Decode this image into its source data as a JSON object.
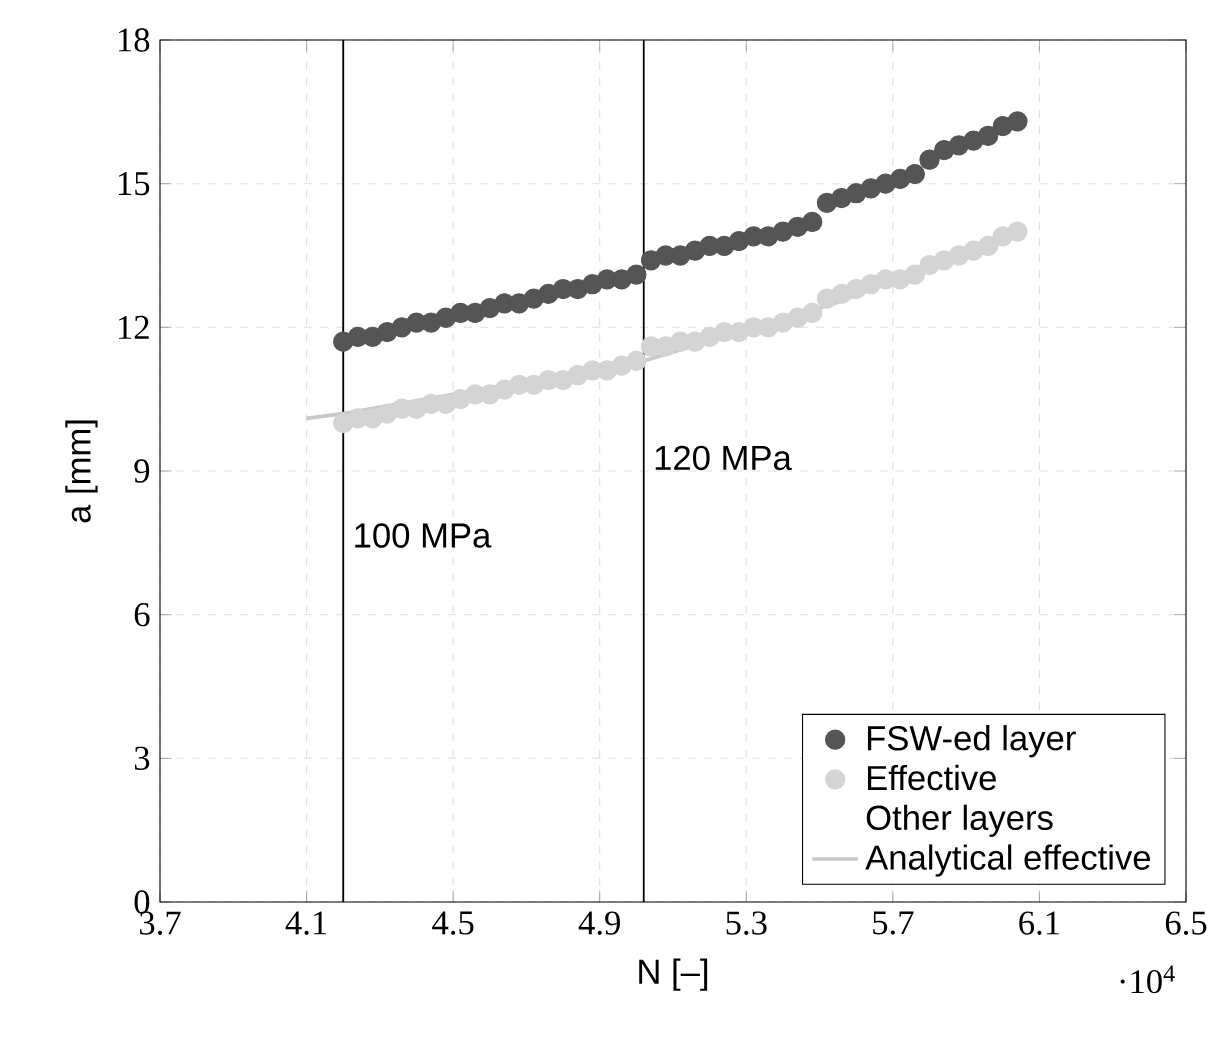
{
  "chart_data": {
    "type": "scatter",
    "xlabel": "N [–]",
    "ylabel": "a [mm]",
    "xlim": [
      3.7,
      6.5
    ],
    "xticks": [
      3.7,
      4.1,
      4.5,
      4.9,
      5.3,
      5.7,
      6.1,
      6.5
    ],
    "ylim": [
      0,
      18
    ],
    "yticks": [
      0,
      3,
      6,
      9,
      12,
      15,
      18
    ],
    "grid": true,
    "legend": "bottom right",
    "x": [
      4.2,
      4.24,
      4.28,
      4.32,
      4.36,
      4.4,
      4.44,
      4.48,
      4.52,
      4.56,
      4.6,
      4.64,
      4.68,
      4.72,
      4.76,
      4.8,
      4.84,
      4.88,
      4.92,
      4.96,
      5.0,
      5.04,
      5.08,
      5.12,
      5.16,
      5.2,
      5.24,
      5.28,
      5.32,
      5.36,
      5.4,
      5.44,
      5.48,
      5.52,
      5.56,
      5.6,
      5.64,
      5.68,
      5.72,
      5.76,
      5.8,
      5.84,
      5.88,
      5.92,
      5.96,
      6.0,
      6.04
    ],
    "series": [
      {
        "name": "FSW-ed layer",
        "color": "#555555",
        "marker": "circle",
        "values": [
          11.7,
          11.8,
          11.8,
          11.9,
          12.0,
          12.1,
          12.1,
          12.2,
          12.3,
          12.3,
          12.4,
          12.5,
          12.5,
          12.6,
          12.7,
          12.8,
          12.8,
          12.9,
          13.0,
          13.0,
          13.1,
          13.4,
          13.5,
          13.5,
          13.6,
          13.7,
          13.7,
          13.8,
          13.9,
          13.9,
          14.0,
          14.1,
          14.2,
          14.6,
          14.7,
          14.8,
          14.9,
          15.0,
          15.1,
          15.2,
          15.5,
          15.7,
          15.8,
          15.9,
          16.0,
          16.2,
          16.3
        ]
      },
      {
        "name": "Effective",
        "color": "#d4d4d4",
        "marker": "circle",
        "values": [
          10.0,
          10.1,
          10.1,
          10.2,
          10.3,
          10.3,
          10.4,
          10.4,
          10.5,
          10.6,
          10.6,
          10.7,
          10.8,
          10.8,
          10.9,
          10.9,
          11.0,
          11.1,
          11.1,
          11.2,
          11.3,
          11.6,
          11.6,
          11.7,
          11.7,
          11.8,
          11.9,
          11.9,
          12.0,
          12.0,
          12.1,
          12.2,
          12.3,
          12.6,
          12.7,
          12.8,
          12.9,
          13.0,
          13.0,
          13.1,
          13.3,
          13.4,
          13.5,
          13.6,
          13.7,
          13.9,
          14.0
        ]
      },
      {
        "name": "Other layers",
        "values": [
          null,
          null,
          null,
          null,
          null,
          null,
          null,
          null,
          null,
          null,
          null,
          null,
          null,
          null,
          null,
          null,
          null,
          null,
          null,
          null,
          null,
          null,
          null,
          null,
          null,
          null,
          null,
          null,
          null,
          null,
          null,
          null,
          null,
          null,
          null,
          null,
          null,
          null,
          null,
          null,
          null,
          null,
          null,
          null,
          null,
          null,
          null
        ]
      },
      {
        "name": "Analytical effective",
        "type": "line",
        "marker": "none",
        "color": "#c8c8c8",
        "x": [
          4.1,
          4.2,
          5.02,
          5.54,
          6.04
        ],
        "values": [
          10.1,
          10.2,
          11.3,
          12.5,
          14.0
        ]
      }
    ],
    "ref_lines": [
      {
        "axis": "x",
        "value": 4.2,
        "label": "100 MPa",
        "color": "#000000"
      },
      {
        "axis": "x",
        "value": 5.02,
        "label": "120 MPa",
        "color": "#000000"
      }
    ],
    "annotations": [
      "·10$^{4}$"
    ]
  }
}
